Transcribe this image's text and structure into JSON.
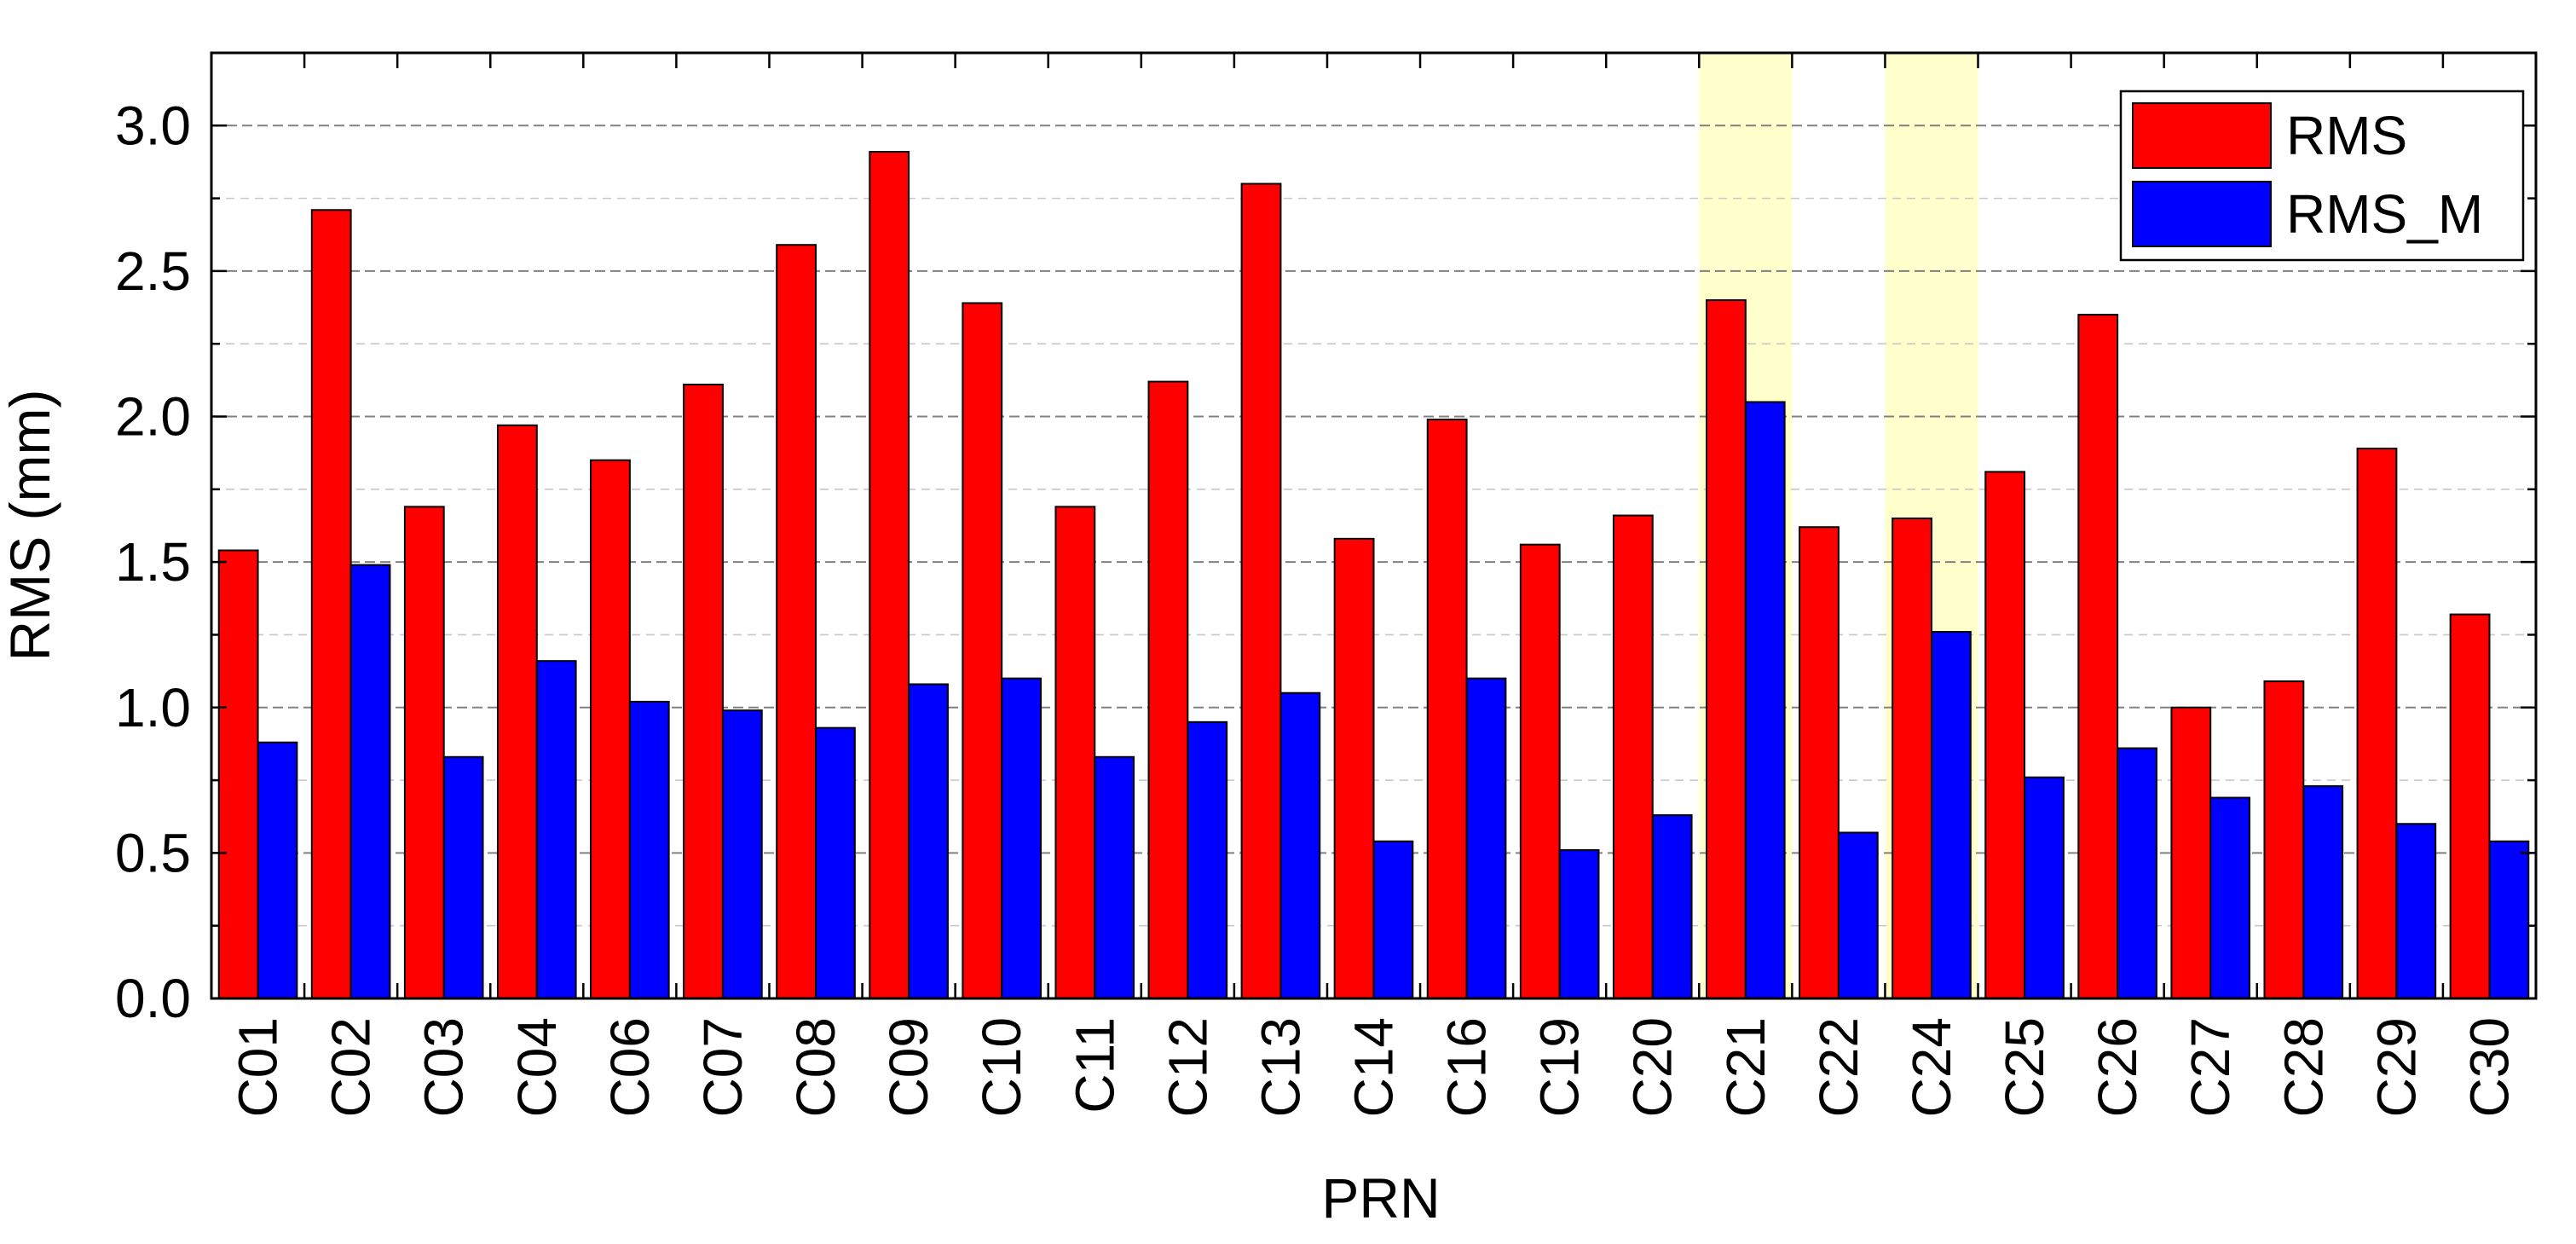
{
  "chart_data": {
    "type": "bar",
    "xlabel": "PRN",
    "ylabel": "RMS (mm)",
    "ylim": [
      0,
      3.25
    ],
    "yticks": [
      "0.0",
      "0.5",
      "1.0",
      "1.5",
      "2.0",
      "2.5",
      "3.0"
    ],
    "categories": [
      "C01",
      "C02",
      "C03",
      "C04",
      "C06",
      "C07",
      "C08",
      "C09",
      "C10",
      "C11",
      "C12",
      "C13",
      "C14",
      "C16",
      "C19",
      "C20",
      "C21",
      "C22",
      "C24",
      "C25",
      "C26",
      "C27",
      "C28",
      "C29",
      "C30"
    ],
    "series": [
      {
        "name": "RMS",
        "color": "#ff0000",
        "values": [
          1.54,
          2.71,
          1.69,
          1.97,
          1.85,
          2.11,
          2.59,
          2.91,
          2.39,
          1.69,
          2.12,
          2.8,
          1.58,
          1.99,
          1.56,
          1.66,
          2.4,
          1.62,
          1.65,
          1.81,
          2.35,
          1.0,
          1.09,
          1.89,
          1.32
        ]
      },
      {
        "name": "RMS_M",
        "color": "#0000ff",
        "values": [
          0.88,
          1.49,
          0.83,
          1.16,
          1.02,
          0.99,
          0.93,
          1.08,
          1.1,
          0.83,
          0.95,
          1.05,
          0.54,
          1.1,
          0.51,
          0.63,
          2.05,
          0.57,
          1.26,
          0.76,
          0.86,
          0.69,
          0.73,
          0.6,
          0.54
        ]
      }
    ],
    "highlighted_categories": [
      "C21",
      "C24"
    ],
    "highlight_color": "#ffffcc",
    "grid": "dashed",
    "legend_position": "top-right"
  }
}
